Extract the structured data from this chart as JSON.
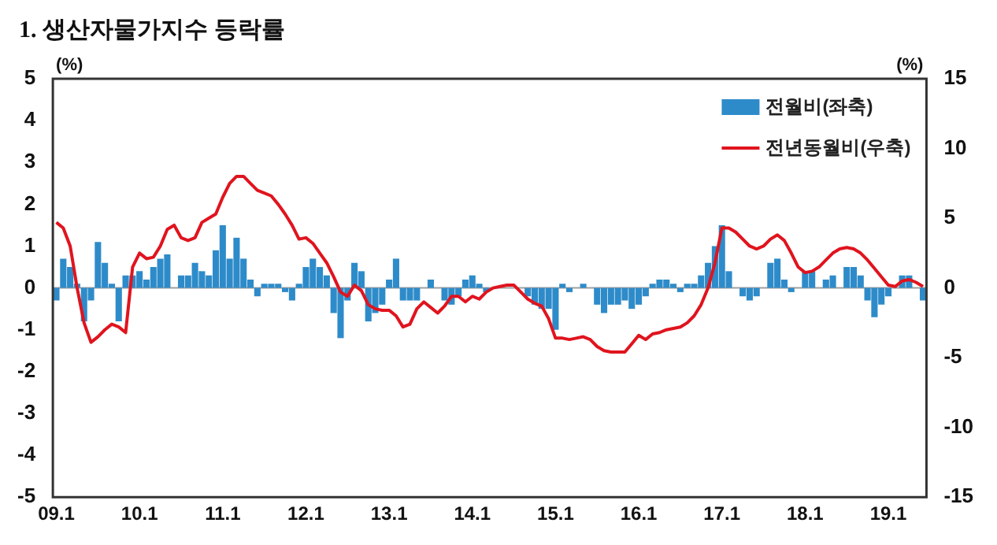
{
  "chart_data": {
    "type": "bar",
    "title": "1. 생산자물가지수 등락률",
    "ylabel": "(%)",
    "y2label": "(%)",
    "categories": [
      "09.1",
      null,
      null,
      null,
      null,
      null,
      null,
      null,
      null,
      null,
      null,
      null,
      "10.1",
      null,
      null,
      null,
      null,
      null,
      null,
      null,
      null,
      null,
      null,
      null,
      "11.1",
      null,
      null,
      null,
      null,
      null,
      null,
      null,
      null,
      null,
      null,
      null,
      "12.1",
      null,
      null,
      null,
      null,
      null,
      null,
      null,
      null,
      null,
      null,
      null,
      "13.1",
      null,
      null,
      null,
      null,
      null,
      null,
      null,
      null,
      null,
      null,
      null,
      "14.1",
      null,
      null,
      null,
      null,
      null,
      null,
      null,
      null,
      null,
      null,
      null,
      "15.1",
      null,
      null,
      null,
      null,
      null,
      null,
      null,
      null,
      null,
      null,
      null,
      "16.1",
      null,
      null,
      null,
      null,
      null,
      null,
      null,
      null,
      null,
      null,
      null,
      "17.1",
      null,
      null,
      null,
      null,
      null,
      null,
      null,
      null,
      null,
      null,
      null,
      "18.1",
      null,
      null,
      null,
      null,
      null,
      null,
      null,
      null,
      null,
      null,
      null,
      "19.1",
      null,
      null,
      null,
      null,
      null
    ],
    "series": [
      {
        "name": "전월비(좌축)",
        "color": "#2e8bc9",
        "values": [
          -0.3,
          0.7,
          0.5,
          0.1,
          -0.8,
          -0.3,
          1.1,
          0.6,
          0.1,
          -0.8,
          0.3,
          0.3,
          0.4,
          0.2,
          0.5,
          0.7,
          0.8,
          0.0,
          0.3,
          0.3,
          0.6,
          0.4,
          0.3,
          0.9,
          1.5,
          0.7,
          1.2,
          0.7,
          0.2,
          -0.2,
          0.1,
          0.1,
          0.1,
          -0.1,
          -0.3,
          0.1,
          0.5,
          0.7,
          0.5,
          0.3,
          -0.6,
          -1.2,
          -0.3,
          0.6,
          0.4,
          -0.8,
          -0.6,
          -0.4,
          0.2,
          0.7,
          -0.3,
          -0.3,
          -0.3,
          0.0,
          0.2,
          0.0,
          -0.3,
          -0.4,
          -0.2,
          0.2,
          0.3,
          0.1,
          -0.1,
          0.0,
          0.0,
          0.0,
          0.0,
          0.0,
          -0.2,
          -0.4,
          -0.5,
          -0.5,
          -1.0,
          0.1,
          -0.1,
          0.0,
          0.1,
          0.0,
          -0.4,
          -0.6,
          -0.4,
          -0.4,
          -0.3,
          -0.5,
          -0.4,
          -0.2,
          0.1,
          0.2,
          0.2,
          0.1,
          -0.1,
          0.1,
          0.1,
          0.3,
          0.6,
          1.0,
          1.5,
          0.4,
          0.0,
          -0.2,
          -0.3,
          -0.2,
          0.0,
          0.6,
          0.7,
          0.2,
          -0.1,
          0.0,
          0.4,
          0.4,
          0.0,
          0.2,
          0.3,
          0.0,
          0.5,
          0.5,
          0.3,
          -0.3,
          -0.7,
          -0.4,
          -0.2,
          0.0,
          0.3,
          0.3,
          0.0,
          -0.3
        ]
      },
      {
        "name": "전년동월비(우축)",
        "type": "line",
        "axis": "y2",
        "color": "#e0141e",
        "values": [
          4.7,
          4.3,
          3.0,
          0.0,
          -2.5,
          -3.9,
          -3.5,
          -3.0,
          -2.6,
          -2.8,
          -3.2,
          1.5,
          2.5,
          2.1,
          2.2,
          3.0,
          4.2,
          4.5,
          3.6,
          3.4,
          3.6,
          4.7,
          5.0,
          5.3,
          6.5,
          7.5,
          8.0,
          8.0,
          7.5,
          7.0,
          6.8,
          6.6,
          6.0,
          5.3,
          4.5,
          3.5,
          3.6,
          3.2,
          2.5,
          1.8,
          0.8,
          -0.3,
          -0.6,
          0.2,
          -0.2,
          -1.2,
          -1.5,
          -1.6,
          -1.6,
          -2.0,
          -2.8,
          -2.6,
          -1.5,
          -1.0,
          -1.4,
          -1.8,
          -1.3,
          -0.6,
          -0.6,
          -1.0,
          -0.6,
          -0.8,
          -0.3,
          0.0,
          0.1,
          0.2,
          0.2,
          -0.3,
          -0.8,
          -1.1,
          -1.3,
          -2.2,
          -3.6,
          -3.6,
          -3.7,
          -3.6,
          -3.5,
          -3.7,
          -4.2,
          -4.5,
          -4.6,
          -4.6,
          -4.6,
          -4.0,
          -3.4,
          -3.7,
          -3.3,
          -3.2,
          -3.0,
          -2.9,
          -2.8,
          -2.5,
          -2.0,
          -1.2,
          0.0,
          1.8,
          4.3,
          4.3,
          4.0,
          3.5,
          3.0,
          2.8,
          3.0,
          3.5,
          3.8,
          3.4,
          2.5,
          1.5,
          1.1,
          1.2,
          1.5,
          2.0,
          2.5,
          2.8,
          2.9,
          2.8,
          2.5,
          2.0,
          1.4,
          0.8,
          0.2,
          0.1,
          0.5,
          0.6,
          0.4,
          0.1
        ]
      }
    ],
    "ylim": [
      -5,
      5
    ],
    "yticks": [
      -5,
      -4,
      -3,
      -2,
      -1,
      0,
      1,
      2,
      3,
      4,
      5
    ],
    "y2lim": [
      -15,
      15
    ],
    "y2ticks": [
      -15,
      -10,
      -5,
      0,
      5,
      10,
      15
    ],
    "ref_lines": [
      {
        "axis": "y",
        "value": 0,
        "color": "#a0a0a0"
      }
    ],
    "grid": false,
    "legend": "top right",
    "marker": "none",
    "line_style": "solid"
  }
}
